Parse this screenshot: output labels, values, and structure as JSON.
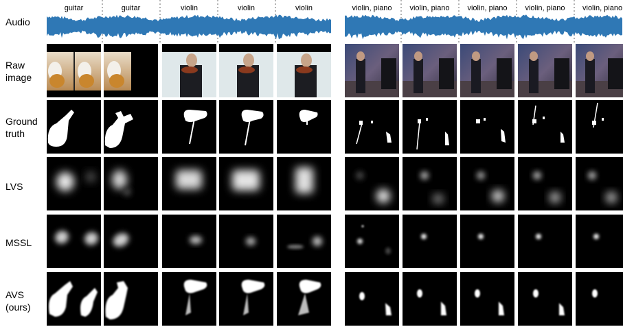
{
  "row_labels": {
    "audio": "Audio",
    "raw_image": [
      "Raw",
      "image"
    ],
    "ground_truth": [
      "Ground",
      "truth"
    ],
    "lvs": "LVS",
    "mssl": "MSSL",
    "avs": [
      "AVS",
      "(ours)"
    ]
  },
  "column_labels": [
    "guitar",
    "guitar",
    "violin",
    "violin",
    "violin",
    "violin, piano",
    "violin, piano",
    "violin, piano",
    "violin, piano",
    "violin, piano"
  ],
  "colors": {
    "waveform": "#2f78b5",
    "mask_bg": "#000000",
    "mask_fg": "#ffffff",
    "separator": "#9a9a9a"
  }
}
